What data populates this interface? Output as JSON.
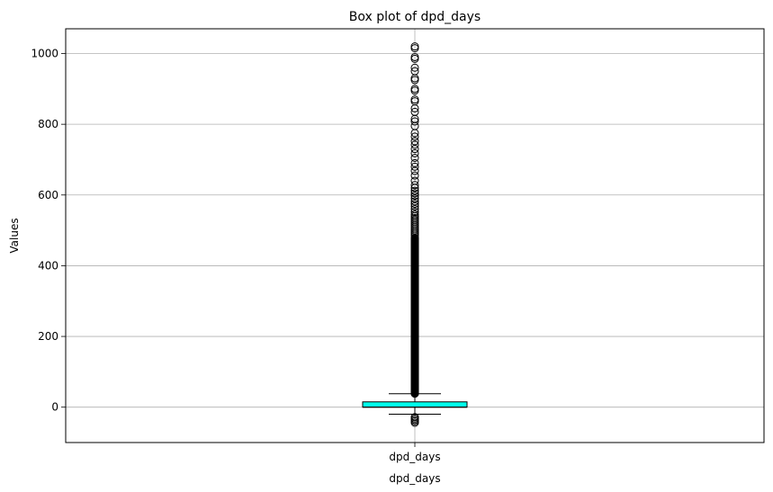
{
  "chart_data": {
    "type": "box",
    "title": "Box plot of dpd_days",
    "xlabel": "dpd_days",
    "ylabel": "Values",
    "categories": [
      "dpd_days"
    ],
    "ylim": [
      -100,
      1070
    ],
    "yticks": [
      0,
      200,
      400,
      600,
      800,
      1000
    ],
    "grid": true,
    "box_color": "#00ffea",
    "box": {
      "whisker_low": -20,
      "q1": 0,
      "median": 0,
      "q3": 15,
      "whisker_high": 38
    },
    "outliers_dense_range": [
      38,
      480
    ],
    "outliers": [
      -28,
      -32,
      -36,
      -40,
      -44,
      485,
      490,
      495,
      500,
      505,
      510,
      515,
      520,
      525,
      530,
      535,
      540,
      545,
      552,
      560,
      568,
      575,
      582,
      590,
      598,
      605,
      612,
      620,
      628,
      640,
      655,
      668,
      680,
      690,
      705,
      718,
      730,
      742,
      752,
      765,
      775,
      795,
      808,
      815,
      835,
      845,
      865,
      870,
      895,
      900,
      925,
      930,
      950,
      960,
      985,
      990,
      1015,
      1020
    ]
  }
}
